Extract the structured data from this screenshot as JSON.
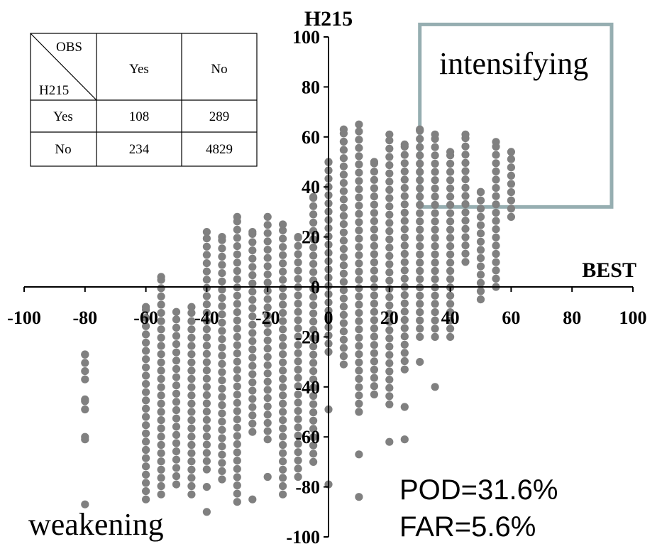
{
  "chart_data": {
    "type": "scatter",
    "xlabel": "BEST",
    "ylabel": "H215",
    "xlim": [
      -100,
      100
    ],
    "ylim": [
      -100,
      100
    ],
    "x_ticks": [
      "-100",
      "-80",
      "-60",
      "-40",
      "-20",
      "0",
      "20",
      "40",
      "60",
      "80",
      "100"
    ],
    "y_ticks": [
      "100",
      "80",
      "60",
      "40",
      "20",
      "0",
      "-20",
      "-40",
      "-60",
      "-80",
      "-100"
    ],
    "marker_color": "#808080",
    "region_box_color": "#96AEB1",
    "intensifying_box": {
      "x_range": [
        30,
        93
      ],
      "y_range": [
        32,
        105
      ]
    },
    "region_labels": {
      "top_right": "intensifying",
      "bottom_left": "weakening"
    },
    "stats": {
      "pod": "POD=31.6%",
      "far": "FAR=5.6%"
    },
    "contingency_table": {
      "row_header": "H215",
      "col_header": "OBS",
      "col_labels": [
        "Yes",
        "No"
      ],
      "rows": [
        {
          "label": "Yes",
          "values": [
            "108",
            "289"
          ]
        },
        {
          "label": "No",
          "values": [
            "234",
            "4829"
          ]
        }
      ]
    },
    "columns": [
      {
        "x": -80,
        "segments": [
          [
            -37,
            -27
          ],
          [
            -49,
            -45
          ]
        ],
        "points": [
          -60,
          -61,
          -87
        ]
      },
      {
        "x": -60,
        "segments": [
          [
            -85,
            -8
          ]
        ],
        "points": []
      },
      {
        "x": -55,
        "segments": [
          [
            -83,
            4
          ]
        ],
        "points": []
      },
      {
        "x": -50,
        "segments": [
          [
            -79,
            -10
          ]
        ],
        "points": []
      },
      {
        "x": -45,
        "segments": [
          [
            -83,
            -8
          ]
        ],
        "points": []
      },
      {
        "x": -40,
        "segments": [
          [
            -73,
            22
          ]
        ],
        "points": [
          -80,
          -90
        ]
      },
      {
        "x": -35,
        "segments": [
          [
            -77,
            20
          ]
        ],
        "points": []
      },
      {
        "x": -30,
        "segments": [
          [
            -86,
            28
          ]
        ],
        "points": []
      },
      {
        "x": -25,
        "segments": [
          [
            -58,
            22
          ]
        ],
        "points": [
          -85
        ]
      },
      {
        "x": -20,
        "segments": [
          [
            -61,
            28
          ]
        ],
        "points": [
          -76
        ]
      },
      {
        "x": -15,
        "segments": [
          [
            -83,
            25
          ]
        ],
        "points": []
      },
      {
        "x": -10,
        "segments": [
          [
            -76,
            20
          ]
        ],
        "points": []
      },
      {
        "x": -5,
        "segments": [
          [
            -70,
            36
          ]
        ],
        "points": []
      },
      {
        "x": 0,
        "segments": [
          [
            -26,
            50
          ]
        ],
        "points": [
          -49,
          -79
        ]
      },
      {
        "x": 5,
        "segments": [
          [
            -31,
            63
          ]
        ],
        "points": []
      },
      {
        "x": 10,
        "segments": [
          [
            -50,
            65
          ]
        ],
        "points": [
          -67,
          -84
        ]
      },
      {
        "x": 15,
        "segments": [
          [
            -43,
            50
          ]
        ],
        "points": []
      },
      {
        "x": 20,
        "segments": [
          [
            -47,
            61
          ]
        ],
        "points": [
          -62
        ]
      },
      {
        "x": 25,
        "segments": [
          [
            -33,
            57
          ]
        ],
        "points": [
          -48,
          -61
        ]
      },
      {
        "x": 30,
        "segments": [
          [
            -20,
            63
          ]
        ],
        "points": [
          -30
        ]
      },
      {
        "x": 35,
        "segments": [
          [
            -20,
            61
          ]
        ],
        "points": [
          -40
        ]
      },
      {
        "x": 40,
        "segments": [
          [
            -20,
            54
          ]
        ],
        "points": []
      },
      {
        "x": 45,
        "segments": [
          [
            10,
            61
          ]
        ],
        "points": []
      },
      {
        "x": 50,
        "segments": [
          [
            -5,
            38
          ]
        ],
        "points": []
      },
      {
        "x": 55,
        "segments": [
          [
            0,
            58
          ]
        ],
        "points": []
      },
      {
        "x": 60,
        "segments": [
          [
            28,
            54
          ]
        ],
        "points": []
      }
    ]
  }
}
